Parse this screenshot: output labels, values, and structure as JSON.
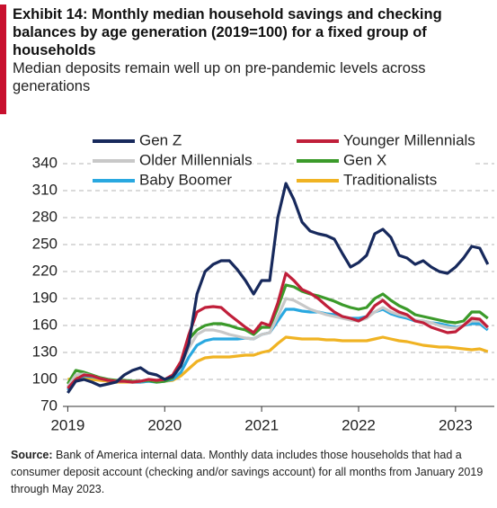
{
  "chart_data": {
    "type": "line",
    "title": [
      "Exhibit 14: Monthly median household savings and checking",
      "balances by age generation (2019=100)  for a fixed group of",
      "households"
    ],
    "subtitle": [
      "Median deposits remain well up on pre-pandemic levels across",
      "generations"
    ],
    "source_label": "Source:",
    "source_text": "Bank of America internal data. Monthly data includes those households  that had a consumer deposit account (checking and/or savings account) for all months from January 2019 through May 2023.",
    "x": [
      2019,
      2019.083,
      2019.167,
      2019.25,
      2019.333,
      2019.417,
      2019.5,
      2019.583,
      2019.667,
      2019.75,
      2019.833,
      2019.917,
      2020,
      2020.083,
      2020.167,
      2020.25,
      2020.333,
      2020.417,
      2020.5,
      2020.583,
      2020.667,
      2020.75,
      2020.833,
      2020.917,
      2021,
      2021.083,
      2021.167,
      2021.25,
      2021.333,
      2021.417,
      2021.5,
      2021.583,
      2021.667,
      2021.75,
      2021.833,
      2021.917,
      2022,
      2022.083,
      2022.167,
      2022.25,
      2022.333,
      2022.417,
      2022.5,
      2022.583,
      2022.667,
      2022.75,
      2022.833,
      2022.917,
      2023,
      2023.083,
      2023.167,
      2023.25,
      2023.333
    ],
    "series": [
      {
        "name": "Gen Z",
        "color": "#17295c",
        "values": [
          85,
          98,
          100,
          97,
          93,
          95,
          97,
          105,
          110,
          113,
          107,
          105,
          100,
          103,
          115,
          140,
          195,
          220,
          228,
          232,
          232,
          222,
          210,
          195,
          210,
          210,
          280,
          318,
          300,
          275,
          265,
          262,
          260,
          256,
          240,
          225,
          230,
          238,
          262,
          267,
          258,
          238,
          235,
          228,
          232,
          225,
          220,
          218,
          225,
          235,
          248,
          246,
          228
        ]
      },
      {
        "name": "Younger Millennials",
        "color": "#c01f3a",
        "values": [
          90,
          100,
          105,
          104,
          101,
          99,
          98,
          98,
          97,
          98,
          100,
          99,
          100,
          105,
          120,
          150,
          175,
          180,
          181,
          180,
          172,
          165,
          158,
          152,
          163,
          160,
          185,
          218,
          210,
          200,
          196,
          190,
          182,
          175,
          170,
          168,
          165,
          170,
          182,
          188,
          180,
          175,
          172,
          165,
          163,
          158,
          155,
          152,
          153,
          160,
          168,
          167,
          158
        ]
      },
      {
        "name": "Older Millennials",
        "color": "#c8c8c8",
        "values": [
          92,
          105,
          106,
          104,
          101,
          99,
          98,
          98,
          97,
          98,
          100,
          99,
          100,
          103,
          115,
          135,
          150,
          155,
          155,
          153,
          150,
          148,
          146,
          145,
          150,
          152,
          170,
          190,
          188,
          183,
          178,
          175,
          172,
          170,
          168,
          166,
          165,
          168,
          175,
          180,
          175,
          172,
          170,
          166,
          165,
          163,
          160,
          158,
          157,
          160,
          165,
          165,
          157
        ]
      },
      {
        "name": "Gen X",
        "color": "#3b9a2a",
        "values": [
          95,
          110,
          108,
          105,
          102,
          100,
          99,
          99,
          98,
          98,
          99,
          97,
          98,
          102,
          118,
          145,
          155,
          160,
          162,
          162,
          160,
          157,
          155,
          150,
          158,
          158,
          180,
          205,
          203,
          198,
          195,
          193,
          190,
          187,
          183,
          180,
          178,
          180,
          190,
          195,
          188,
          182,
          178,
          172,
          170,
          168,
          166,
          164,
          163,
          165,
          175,
          175,
          168
        ]
      },
      {
        "name": "Baby Boomer",
        "color": "#29a8e0",
        "values": [
          88,
          100,
          104,
          103,
          101,
          99,
          98,
          98,
          97,
          97,
          98,
          97,
          98,
          100,
          108,
          125,
          138,
          143,
          145,
          145,
          145,
          145,
          146,
          145,
          150,
          152,
          165,
          178,
          178,
          176,
          175,
          175,
          173,
          172,
          170,
          168,
          168,
          170,
          175,
          178,
          173,
          170,
          168,
          165,
          165,
          163,
          162,
          160,
          158,
          160,
          162,
          162,
          155
        ]
      },
      {
        "name": "Traditionalists",
        "color": "#f0b323",
        "values": [
          100,
          102,
          101,
          100,
          99,
          98,
          97,
          97,
          97,
          97,
          98,
          98,
          98,
          99,
          104,
          112,
          120,
          124,
          125,
          125,
          125,
          126,
          127,
          127,
          130,
          132,
          140,
          147,
          146,
          145,
          145,
          145,
          144,
          144,
          143,
          143,
          143,
          143,
          145,
          147,
          145,
          143,
          142,
          140,
          138,
          137,
          136,
          136,
          135,
          134,
          133,
          134,
          131
        ]
      }
    ],
    "xlim": [
      2018.95,
      2023.4
    ],
    "xticks": [
      2019,
      2020,
      2021,
      2022,
      2023
    ],
    "ylim": [
      70,
      340
    ],
    "yticks": [
      70,
      100,
      130,
      160,
      190,
      220,
      250,
      280,
      310,
      340
    ],
    "grid": true
  }
}
